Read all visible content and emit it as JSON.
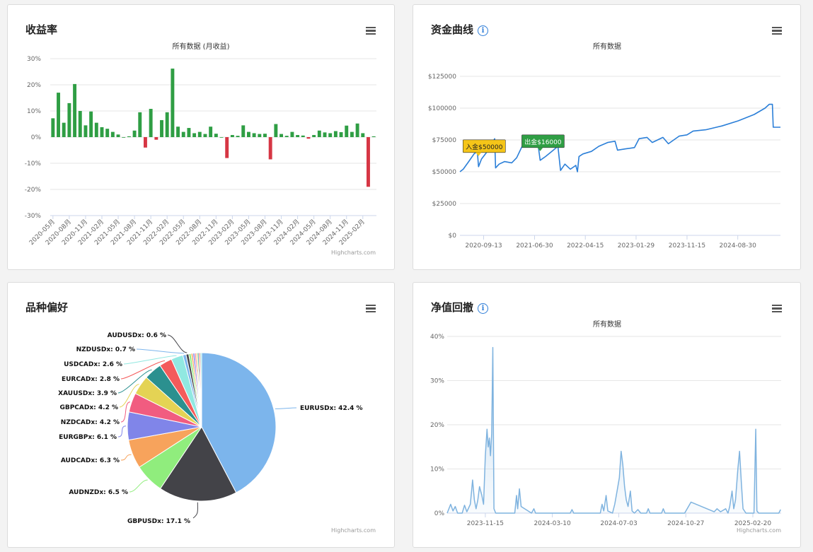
{
  "cards": {
    "returns": {
      "title": "收益率",
      "credit": "Highcharts.com"
    },
    "equity": {
      "title": "资金曲线",
      "credit": ""
    },
    "symbols": {
      "title": "品种偏好",
      "credit": "Highcharts.com"
    },
    "drawdown": {
      "title": "净值回撤",
      "credit": "Highcharts.com"
    }
  },
  "icons": {
    "info": "info-icon",
    "menu": "hamburger-menu-icon"
  },
  "colors": {
    "positive": "#2f9e44",
    "negative": "#d63644",
    "line": "#2b7fd8",
    "deposit": "#f5c518",
    "withdraw": "#2f9e44",
    "drawdown_line": "#7fb3df"
  },
  "chart_data": [
    {
      "id": "returns",
      "type": "bar",
      "subtitle": "所有数据 (月收益)",
      "ylim": [
        -30,
        30
      ],
      "yticks": [
        "30%",
        "20%",
        "10%",
        "0%",
        "-10%",
        "-20%",
        "-30%"
      ],
      "xtick_labels": [
        "2020-05月",
        "2020-08月",
        "2020-11月",
        "2021-02月",
        "2021-05月",
        "2021-08月",
        "2021-11月",
        "2022-02月",
        "2022-05月",
        "2022-08月",
        "2022-11月",
        "2023-02月",
        "2023-05月",
        "2023-08月",
        "2023-11月",
        "2024-02月",
        "2024-05月",
        "2024-08月",
        "2024-11月",
        "2025-02月"
      ],
      "values": [
        7.2,
        17,
        5.5,
        13,
        20.3,
        10,
        4.5,
        9.8,
        5.5,
        3.8,
        3.2,
        2,
        1,
        0,
        0.3,
        2.5,
        9.5,
        -4,
        10.8,
        -1,
        6.5,
        9.5,
        26.2,
        4,
        2,
        3.5,
        1.5,
        2,
        1.2,
        4,
        1.3,
        0,
        -8,
        0.8,
        0.5,
        4.5,
        2,
        1.5,
        1.2,
        1.3,
        -8.5,
        5,
        1.2,
        0.5,
        2,
        0.8,
        0.6,
        -0.6,
        0.8,
        2.5,
        1.8,
        1.5,
        2.3,
        1.9,
        4.4,
        2,
        5.2,
        1.5,
        -19,
        0.3
      ]
    },
    {
      "id": "equity",
      "type": "line",
      "subtitle": "所有数据",
      "ylim": [
        0,
        125000
      ],
      "yticks": [
        "$125000",
        "$100000",
        "$75000",
        "$50000",
        "$25000",
        "$0"
      ],
      "xticks": [
        "2020-09-13",
        "2021-06-30",
        "2022-04-15",
        "2023-01-29",
        "2023-11-15",
        "2024-08-30"
      ],
      "x_range": [
        "2020-05-01",
        "2025-04-30"
      ],
      "points": [
        [
          "2020-05-01",
          50000
        ],
        [
          "2020-05-20",
          52000
        ],
        [
          "2020-06-20",
          58000
        ],
        [
          "2020-07-20",
          64000
        ],
        [
          "2020-08-08",
          66000
        ],
        [
          "2020-08-15",
          54000
        ],
        [
          "2020-09-01",
          60000
        ],
        [
          "2020-10-15",
          68000
        ],
        [
          "2020-11-15",
          76000
        ],
        [
          "2020-11-20",
          53000
        ],
        [
          "2020-12-10",
          56000
        ],
        [
          "2021-01-10",
          58000
        ],
        [
          "2021-02-20",
          57000
        ],
        [
          "2021-03-20",
          61000
        ],
        [
          "2021-04-20",
          70000
        ],
        [
          "2021-06-20",
          73000
        ],
        [
          "2021-07-20",
          71000
        ],
        [
          "2021-08-01",
          59000
        ],
        [
          "2021-09-01",
          62000
        ],
        [
          "2021-10-15",
          67000
        ],
        [
          "2021-11-10",
          70000
        ],
        [
          "2021-11-25",
          51000
        ],
        [
          "2021-12-20",
          56000
        ],
        [
          "2022-01-20",
          52000
        ],
        [
          "2022-02-20",
          55000
        ],
        [
          "2022-03-01",
          50000
        ],
        [
          "2022-03-10",
          62000
        ],
        [
          "2022-04-01",
          64000
        ],
        [
          "2022-05-20",
          66000
        ],
        [
          "2022-07-01",
          70000
        ],
        [
          "2022-08-20",
          73000
        ],
        [
          "2022-10-01",
          74000
        ],
        [
          "2022-10-15",
          67000
        ],
        [
          "2022-12-01",
          68000
        ],
        [
          "2023-01-20",
          69000
        ],
        [
          "2023-02-15",
          76000
        ],
        [
          "2023-04-01",
          77000
        ],
        [
          "2023-05-01",
          73000
        ],
        [
          "2023-07-01",
          77000
        ],
        [
          "2023-08-01",
          72000
        ],
        [
          "2023-10-01",
          78000
        ],
        [
          "2023-11-15",
          79000
        ],
        [
          "2023-12-20",
          82000
        ],
        [
          "2024-03-01",
          83000
        ],
        [
          "2024-06-01",
          86000
        ],
        [
          "2024-09-01",
          90000
        ],
        [
          "2024-12-01",
          95000
        ],
        [
          "2025-02-01",
          100000
        ],
        [
          "2025-02-25",
          103000
        ],
        [
          "2025-03-15",
          103000
        ],
        [
          "2025-03-20",
          85000
        ],
        [
          "2025-04-30",
          85000
        ]
      ],
      "annotations": [
        {
          "label": "入金$50000",
          "date": "2020-08-15",
          "value": 54000,
          "kind": "deposit"
        },
        {
          "label": "出金$16000",
          "date": "2021-08-01",
          "value": 59000,
          "kind": "withdraw"
        }
      ]
    },
    {
      "id": "symbols",
      "type": "pie",
      "slices": [
        {
          "name": "EURUSDx",
          "value": 42.4,
          "label": "EURUSDx: 42.4 %",
          "color": "#7cb5ec"
        },
        {
          "name": "GBPUSDx",
          "value": 17.1,
          "label": "GBPUSDx: 17.1 %",
          "color": "#434348"
        },
        {
          "name": "AUDNZDx",
          "value": 6.5,
          "label": "AUDNZDx: 6.5 %",
          "color": "#90ed7d"
        },
        {
          "name": "AUDCADx",
          "value": 6.3,
          "label": "AUDCADx: 6.3 %",
          "color": "#f7a35c"
        },
        {
          "name": "EURGBPx",
          "value": 6.1,
          "label": "EURGBPx: 6.1 %",
          "color": "#8085e9"
        },
        {
          "name": "NZDCADx",
          "value": 4.2,
          "label": "NZDCADx: 4.2 %",
          "color": "#f15c80"
        },
        {
          "name": "GBPCADx",
          "value": 4.2,
          "label": "GBPCADx: 4.2 %",
          "color": "#e4d354"
        },
        {
          "name": "XAUUSDx",
          "value": 3.9,
          "label": "XAUUSDx: 3.9 %",
          "color": "#2b908f"
        },
        {
          "name": "EURCADx",
          "value": 2.8,
          "label": "EURCADx: 2.8 %",
          "color": "#f45b5b"
        },
        {
          "name": "USDCADx",
          "value": 2.6,
          "label": "USDCADx: 2.6 %",
          "color": "#91e8e1"
        },
        {
          "name": "NZDUSDx",
          "value": 0.7,
          "label": "NZDUSDx: 0.7 %",
          "color": "#7cb5ec"
        },
        {
          "name": "AUDUSDx",
          "value": 0.6,
          "label": "AUDUSDx: 0.6 %",
          "color": "#434348"
        },
        {
          "value": 0.5,
          "color": "#90ed7d"
        },
        {
          "value": 0.4,
          "color": "#f7a35c"
        },
        {
          "value": 0.4,
          "color": "#8085e9"
        },
        {
          "value": 0.3,
          "color": "#f15c80"
        },
        {
          "value": 0.3,
          "color": "#e4d354"
        },
        {
          "value": 0.3,
          "color": "#2b908f"
        },
        {
          "value": 0.3,
          "color": "#f45b5b"
        },
        {
          "value": 0.3,
          "color": "#91e8e1"
        }
      ]
    },
    {
      "id": "drawdown",
      "type": "area",
      "subtitle": "所有数据",
      "ylim": [
        0,
        40
      ],
      "yticks": [
        "40%",
        "30%",
        "20%",
        "10%",
        "0%"
      ],
      "xticks": [
        "2023-11-15",
        "2024-03-10",
        "2024-07-03",
        "2024-10-27",
        "2025-02-20"
      ],
      "x_range": [
        "2023-09-10",
        "2025-04-10"
      ],
      "points": [
        [
          "2023-09-10",
          0
        ],
        [
          "2023-09-16",
          2
        ],
        [
          "2023-09-20",
          0.5
        ],
        [
          "2023-09-24",
          1.5
        ],
        [
          "2023-09-28",
          0
        ],
        [
          "2023-10-06",
          0
        ],
        [
          "2023-10-10",
          1.8
        ],
        [
          "2023-10-14",
          0.3
        ],
        [
          "2023-10-20",
          2
        ],
        [
          "2023-10-24",
          7.5
        ],
        [
          "2023-10-27",
          3
        ],
        [
          "2023-10-30",
          1
        ],
        [
          "2023-11-02",
          3
        ],
        [
          "2023-11-05",
          6
        ],
        [
          "2023-11-09",
          4
        ],
        [
          "2023-11-12",
          2
        ],
        [
          "2023-11-15",
          13
        ],
        [
          "2023-11-18",
          19
        ],
        [
          "2023-11-20",
          15
        ],
        [
          "2023-11-22",
          17
        ],
        [
          "2023-11-24",
          13
        ],
        [
          "2023-11-26",
          18
        ],
        [
          "2023-11-28",
          37.5
        ],
        [
          "2023-11-30",
          1
        ],
        [
          "2023-12-03",
          0
        ],
        [
          "2024-01-05",
          0
        ],
        [
          "2024-01-08",
          4
        ],
        [
          "2024-01-10",
          1
        ],
        [
          "2024-01-13",
          5.5
        ],
        [
          "2024-01-16",
          1.5
        ],
        [
          "2024-01-22",
          1
        ],
        [
          "2024-01-28",
          0.5
        ],
        [
          "2024-02-03",
          0
        ],
        [
          "2024-02-07",
          1
        ],
        [
          "2024-02-10",
          0
        ],
        [
          "2024-04-10",
          0
        ],
        [
          "2024-04-13",
          0.8
        ],
        [
          "2024-04-16",
          0
        ],
        [
          "2024-06-01",
          0
        ],
        [
          "2024-06-04",
          2
        ],
        [
          "2024-06-07",
          0.5
        ],
        [
          "2024-06-11",
          4
        ],
        [
          "2024-06-14",
          0.5
        ],
        [
          "2024-06-22",
          0
        ],
        [
          "2024-06-26",
          2
        ],
        [
          "2024-06-30",
          5
        ],
        [
          "2024-07-04",
          8
        ],
        [
          "2024-07-07",
          14
        ],
        [
          "2024-07-10",
          11
        ],
        [
          "2024-07-13",
          6
        ],
        [
          "2024-07-16",
          3
        ],
        [
          "2024-07-19",
          1.5
        ],
        [
          "2024-07-23",
          5
        ],
        [
          "2024-07-26",
          0.5
        ],
        [
          "2024-07-30",
          0
        ],
        [
          "2024-08-05",
          0.8
        ],
        [
          "2024-08-10",
          0
        ],
        [
          "2024-08-20",
          0
        ],
        [
          "2024-08-23",
          1
        ],
        [
          "2024-08-26",
          0
        ],
        [
          "2024-09-15",
          0
        ],
        [
          "2024-09-18",
          1
        ],
        [
          "2024-09-21",
          0
        ],
        [
          "2024-10-25",
          0
        ],
        [
          "2024-11-05",
          2.5
        ],
        [
          "2024-12-15",
          0.3
        ],
        [
          "2024-12-20",
          1
        ],
        [
          "2024-12-26",
          0.3
        ],
        [
          "2025-01-04",
          1
        ],
        [
          "2025-01-08",
          0
        ],
        [
          "2025-01-11",
          1.5
        ],
        [
          "2025-01-15",
          5
        ],
        [
          "2025-01-18",
          1
        ],
        [
          "2025-01-21",
          3
        ],
        [
          "2025-01-25",
          10
        ],
        [
          "2025-01-28",
          14
        ],
        [
          "2025-01-31",
          7
        ],
        [
          "2025-02-03",
          1
        ],
        [
          "2025-02-08",
          0
        ],
        [
          "2025-02-22",
          0
        ],
        [
          "2025-02-25",
          19
        ],
        [
          "2025-02-27",
          0.5
        ],
        [
          "2025-03-02",
          0
        ],
        [
          "2025-04-06",
          0
        ],
        [
          "2025-04-09",
          0.8
        ]
      ]
    }
  ]
}
